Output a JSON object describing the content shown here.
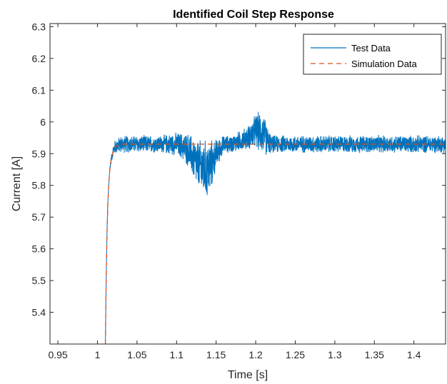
{
  "chart_data": {
    "type": "line",
    "title": "Identified Coil Step Response",
    "xlabel": "Time [s]",
    "ylabel": "Current [A]",
    "xlim": [
      0.94,
      1.44
    ],
    "ylim": [
      5.3,
      6.31
    ],
    "xticks": [
      0.95,
      1,
      1.05,
      1.1,
      1.15,
      1.2,
      1.25,
      1.3,
      1.35,
      1.4
    ],
    "xtick_labels": [
      "0.95",
      "1",
      "1.05",
      "1.1",
      "1.15",
      "1.2",
      "1.25",
      "1.3",
      "1.35",
      "1.4"
    ],
    "yticks": [
      5.4,
      5.5,
      5.6,
      5.7,
      5.8,
      5.9,
      6,
      6.1,
      6.2,
      6.3
    ],
    "ytick_labels": [
      "5.4",
      "5.5",
      "5.6",
      "5.7",
      "5.8",
      "5.9",
      "6",
      "6.1",
      "6.2",
      "6.3"
    ],
    "grid": false,
    "legend_position": "top-right",
    "step": {
      "t_start": 1.01,
      "steady_value": 5.93
    },
    "series": [
      {
        "name": "Test Data",
        "color": "#0072BD",
        "style": "solid",
        "x": [
          1.01,
          1.011,
          1.012,
          1.013,
          1.014,
          1.015,
          1.016,
          1.018,
          1.02,
          1.022,
          1.025,
          1.03,
          1.04,
          1.05,
          1.06,
          1.07,
          1.08,
          1.09,
          1.1,
          1.11,
          1.115,
          1.12,
          1.125,
          1.13,
          1.135,
          1.14,
          1.145,
          1.15,
          1.16,
          1.17,
          1.18,
          1.19,
          1.195,
          1.2,
          1.205,
          1.21,
          1.215,
          1.22,
          1.23,
          1.25,
          1.3,
          1.35,
          1.4,
          1.44
        ],
        "y": [
          5.3,
          5.5,
          5.65,
          5.74,
          5.79,
          5.83,
          5.86,
          5.89,
          5.91,
          5.92,
          5.925,
          5.93,
          5.93,
          5.93,
          5.93,
          5.93,
          5.93,
          5.93,
          5.93,
          5.92,
          5.91,
          5.89,
          5.87,
          5.86,
          5.85,
          5.85,
          5.87,
          5.9,
          5.93,
          5.93,
          5.94,
          5.95,
          5.96,
          5.97,
          5.97,
          5.96,
          5.94,
          5.93,
          5.93,
          5.93,
          5.93,
          5.93,
          5.93,
          5.93
        ],
        "noise_amplitude": [
          0,
          0,
          0,
          0,
          0.01,
          0.01,
          0.01,
          0.015,
          0.02,
          0.025,
          0.025,
          0.03,
          0.03,
          0.03,
          0.03,
          0.03,
          0.03,
          0.035,
          0.04,
          0.05,
          0.06,
          0.07,
          0.08,
          0.09,
          0.1,
          0.1,
          0.08,
          0.05,
          0.03,
          0.03,
          0.035,
          0.04,
          0.05,
          0.06,
          0.07,
          0.07,
          0.05,
          0.03,
          0.03,
          0.03,
          0.03,
          0.03,
          0.03,
          0.03
        ]
      },
      {
        "name": "Simulation Data",
        "color": "#D95319",
        "style": "dashed",
        "x": [
          1.01,
          1.011,
          1.012,
          1.013,
          1.014,
          1.015,
          1.016,
          1.018,
          1.02,
          1.022,
          1.025,
          1.03,
          1.04,
          1.44
        ],
        "y": [
          5.3,
          5.5,
          5.64,
          5.73,
          5.79,
          5.83,
          5.86,
          5.89,
          5.91,
          5.92,
          5.925,
          5.93,
          5.93,
          5.93
        ]
      }
    ]
  }
}
